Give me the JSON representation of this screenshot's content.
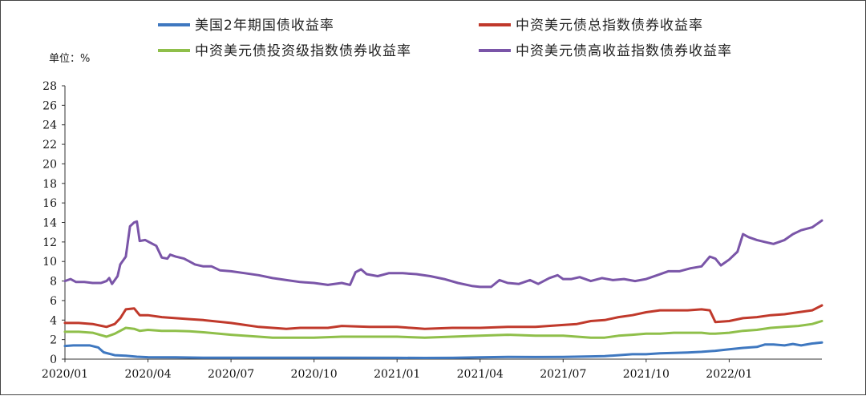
{
  "chart_data": {
    "type": "line",
    "unit_label": "单位：%",
    "x_ticks": [
      "2020/01",
      "2020/04",
      "2020/07",
      "2020/10",
      "2021/01",
      "2021/04",
      "2021/07",
      "2021/10",
      "2022/01"
    ],
    "x_range": [
      "2020/01",
      "2022/03"
    ],
    "ylim": [
      0,
      28
    ],
    "y_ticks": [
      0,
      2,
      4,
      6,
      8,
      10,
      12,
      14,
      16,
      18,
      20,
      22,
      24,
      26,
      28
    ],
    "grid": false,
    "legend_position": "top",
    "series": [
      {
        "name": "美国2年期国债收益率",
        "color": "#3f78c0",
        "points": [
          [
            0,
            1.35
          ],
          [
            0.3,
            1.4
          ],
          [
            0.9,
            1.4
          ],
          [
            1.2,
            1.2
          ],
          [
            1.4,
            0.7
          ],
          [
            1.8,
            0.4
          ],
          [
            2.2,
            0.35
          ],
          [
            2.6,
            0.25
          ],
          [
            3,
            0.2
          ],
          [
            4,
            0.18
          ],
          [
            5,
            0.15
          ],
          [
            6,
            0.15
          ],
          [
            8,
            0.14
          ],
          [
            10,
            0.14
          ],
          [
            12,
            0.13
          ],
          [
            13,
            0.12
          ],
          [
            14,
            0.13
          ],
          [
            15,
            0.18
          ],
          [
            16,
            0.23
          ],
          [
            17,
            0.21
          ],
          [
            18,
            0.22
          ],
          [
            19,
            0.28
          ],
          [
            19.5,
            0.3
          ],
          [
            20,
            0.4
          ],
          [
            20.5,
            0.5
          ],
          [
            21,
            0.5
          ],
          [
            21.5,
            0.6
          ],
          [
            22,
            0.63
          ],
          [
            22.5,
            0.68
          ],
          [
            23,
            0.75
          ],
          [
            23.5,
            0.85
          ],
          [
            24,
            1.0
          ],
          [
            24.5,
            1.15
          ],
          [
            25,
            1.25
          ],
          [
            25.3,
            1.5
          ],
          [
            25.6,
            1.5
          ],
          [
            26,
            1.4
          ],
          [
            26.3,
            1.55
          ],
          [
            26.6,
            1.4
          ],
          [
            27,
            1.6
          ],
          [
            27.35,
            1.7
          ]
        ]
      },
      {
        "name": "中资美元债总指数债券收益率",
        "color": "#c0392b",
        "points": [
          [
            0,
            3.7
          ],
          [
            0.5,
            3.7
          ],
          [
            1,
            3.6
          ],
          [
            1.5,
            3.3
          ],
          [
            1.8,
            3.6
          ],
          [
            2,
            4.2
          ],
          [
            2.2,
            5.1
          ],
          [
            2.5,
            5.2
          ],
          [
            2.7,
            4.5
          ],
          [
            3,
            4.5
          ],
          [
            3.5,
            4.3
          ],
          [
            4,
            4.2
          ],
          [
            4.5,
            4.1
          ],
          [
            5,
            4.0
          ],
          [
            6,
            3.7
          ],
          [
            6.5,
            3.5
          ],
          [
            7,
            3.3
          ],
          [
            7.5,
            3.2
          ],
          [
            8,
            3.1
          ],
          [
            8.5,
            3.2
          ],
          [
            9,
            3.2
          ],
          [
            9.5,
            3.2
          ],
          [
            10,
            3.4
          ],
          [
            11,
            3.3
          ],
          [
            12,
            3.3
          ],
          [
            12.5,
            3.2
          ],
          [
            13,
            3.1
          ],
          [
            14,
            3.2
          ],
          [
            15,
            3.2
          ],
          [
            16,
            3.3
          ],
          [
            17,
            3.3
          ],
          [
            18,
            3.5
          ],
          [
            18.5,
            3.6
          ],
          [
            19,
            3.9
          ],
          [
            19.5,
            4.0
          ],
          [
            20,
            4.3
          ],
          [
            20.5,
            4.5
          ],
          [
            21,
            4.8
          ],
          [
            21.5,
            5.0
          ],
          [
            22,
            5.0
          ],
          [
            22.5,
            5.0
          ],
          [
            23,
            5.1
          ],
          [
            23.3,
            5.0
          ],
          [
            23.5,
            3.8
          ],
          [
            24,
            3.9
          ],
          [
            24.5,
            4.2
          ],
          [
            25,
            4.3
          ],
          [
            25.5,
            4.5
          ],
          [
            26,
            4.6
          ],
          [
            26.5,
            4.8
          ],
          [
            27,
            5.0
          ],
          [
            27.35,
            5.5
          ]
        ]
      },
      {
        "name": "中资美元债投资级指数债券收益率",
        "color": "#8fbf4a",
        "points": [
          [
            0,
            2.8
          ],
          [
            0.5,
            2.8
          ],
          [
            1,
            2.7
          ],
          [
            1.5,
            2.3
          ],
          [
            1.8,
            2.6
          ],
          [
            2.2,
            3.2
          ],
          [
            2.5,
            3.1
          ],
          [
            2.7,
            2.9
          ],
          [
            3,
            3.0
          ],
          [
            3.5,
            2.9
          ],
          [
            4,
            2.9
          ],
          [
            4.5,
            2.85
          ],
          [
            5,
            2.75
          ],
          [
            6,
            2.5
          ],
          [
            7,
            2.3
          ],
          [
            7.5,
            2.2
          ],
          [
            8,
            2.2
          ],
          [
            8.5,
            2.2
          ],
          [
            9,
            2.2
          ],
          [
            10,
            2.3
          ],
          [
            11,
            2.3
          ],
          [
            12,
            2.3
          ],
          [
            13,
            2.2
          ],
          [
            14,
            2.3
          ],
          [
            15,
            2.4
          ],
          [
            16,
            2.5
          ],
          [
            17,
            2.4
          ],
          [
            18,
            2.4
          ],
          [
            18.5,
            2.3
          ],
          [
            19,
            2.2
          ],
          [
            19.5,
            2.2
          ],
          [
            20,
            2.4
          ],
          [
            20.5,
            2.5
          ],
          [
            21,
            2.6
          ],
          [
            21.5,
            2.6
          ],
          [
            22,
            2.7
          ],
          [
            22.5,
            2.7
          ],
          [
            23,
            2.7
          ],
          [
            23.3,
            2.6
          ],
          [
            23.5,
            2.6
          ],
          [
            24,
            2.7
          ],
          [
            24.5,
            2.9
          ],
          [
            25,
            3.0
          ],
          [
            25.5,
            3.2
          ],
          [
            26,
            3.3
          ],
          [
            26.5,
            3.4
          ],
          [
            27,
            3.6
          ],
          [
            27.35,
            3.9
          ]
        ]
      },
      {
        "name": "中资美元债高收益指数债券收益率",
        "color": "#7a55a8",
        "points": [
          [
            0,
            8.0
          ],
          [
            0.2,
            8.2
          ],
          [
            0.4,
            7.9
          ],
          [
            0.7,
            7.9
          ],
          [
            1,
            7.8
          ],
          [
            1.3,
            7.8
          ],
          [
            1.5,
            8.0
          ],
          [
            1.6,
            8.3
          ],
          [
            1.7,
            7.7
          ],
          [
            1.9,
            8.5
          ],
          [
            2,
            9.7
          ],
          [
            2.2,
            10.5
          ],
          [
            2.35,
            13.6
          ],
          [
            2.5,
            14.0
          ],
          [
            2.6,
            14.1
          ],
          [
            2.7,
            12.1
          ],
          [
            2.9,
            12.2
          ],
          [
            3.1,
            11.9
          ],
          [
            3.3,
            11.6
          ],
          [
            3.5,
            10.4
          ],
          [
            3.7,
            10.3
          ],
          [
            3.8,
            10.7
          ],
          [
            4,
            10.5
          ],
          [
            4.3,
            10.3
          ],
          [
            4.5,
            10.0
          ],
          [
            4.7,
            9.7
          ],
          [
            5,
            9.5
          ],
          [
            5.3,
            9.5
          ],
          [
            5.6,
            9.1
          ],
          [
            6,
            9.0
          ],
          [
            6.5,
            8.8
          ],
          [
            7,
            8.6
          ],
          [
            7.5,
            8.3
          ],
          [
            8,
            8.1
          ],
          [
            8.5,
            7.9
          ],
          [
            9,
            7.8
          ],
          [
            9.5,
            7.6
          ],
          [
            10,
            7.8
          ],
          [
            10.3,
            7.6
          ],
          [
            10.5,
            8.9
          ],
          [
            10.7,
            9.2
          ],
          [
            10.9,
            8.7
          ],
          [
            11.3,
            8.5
          ],
          [
            11.7,
            8.8
          ],
          [
            12.2,
            8.8
          ],
          [
            12.7,
            8.7
          ],
          [
            13.2,
            8.5
          ],
          [
            13.7,
            8.2
          ],
          [
            14.2,
            7.8
          ],
          [
            14.7,
            7.5
          ],
          [
            15,
            7.4
          ],
          [
            15.4,
            7.4
          ],
          [
            15.7,
            8.1
          ],
          [
            16,
            7.8
          ],
          [
            16.4,
            7.7
          ],
          [
            16.8,
            8.1
          ],
          [
            17.1,
            7.7
          ],
          [
            17.5,
            8.3
          ],
          [
            17.8,
            8.6
          ],
          [
            18,
            8.2
          ],
          [
            18.3,
            8.2
          ],
          [
            18.6,
            8.4
          ],
          [
            19,
            8.0
          ],
          [
            19.4,
            8.3
          ],
          [
            19.8,
            8.1
          ],
          [
            20.2,
            8.2
          ],
          [
            20.6,
            8.0
          ],
          [
            21,
            8.2
          ],
          [
            21.4,
            8.6
          ],
          [
            21.8,
            9.0
          ],
          [
            22.2,
            9.0
          ],
          [
            22.6,
            9.3
          ],
          [
            23,
            9.5
          ],
          [
            23.3,
            10.5
          ],
          [
            23.5,
            10.3
          ],
          [
            23.7,
            9.6
          ],
          [
            24,
            10.2
          ],
          [
            24.3,
            11.0
          ],
          [
            24.5,
            12.8
          ],
          [
            24.7,
            12.5
          ],
          [
            25,
            12.2
          ],
          [
            25.3,
            12.0
          ],
          [
            25.6,
            11.8
          ],
          [
            26,
            12.2
          ],
          [
            26.3,
            12.8
          ],
          [
            26.6,
            13.2
          ],
          [
            27,
            13.5
          ],
          [
            27.35,
            14.2
          ]
        ]
      }
    ]
  }
}
